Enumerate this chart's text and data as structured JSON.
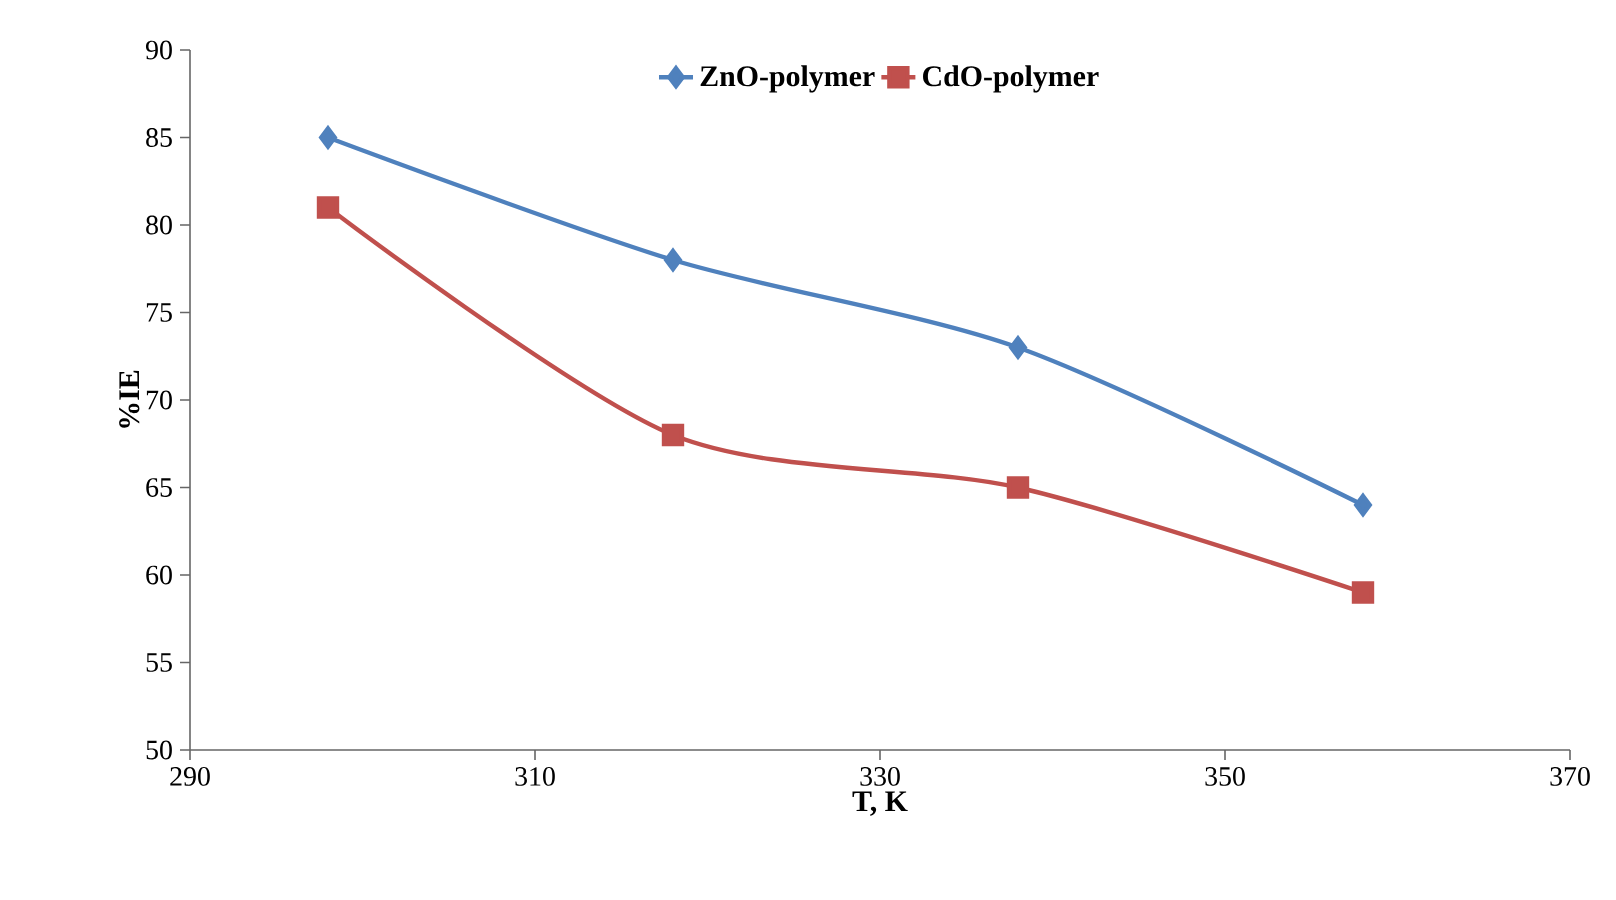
{
  "chart_data": {
    "type": "line",
    "xlabel": "T, K",
    "ylabel": "%IE",
    "x": [
      298,
      318,
      338,
      358
    ],
    "series": [
      {
        "name": "ZnO-polymer",
        "color": "#4f81bd",
        "marker": "diamond",
        "values": [
          85,
          78,
          73,
          64
        ]
      },
      {
        "name": "CdO-polymer",
        "color": "#c0504d",
        "marker": "square",
        "values": [
          81,
          68,
          65,
          59
        ]
      }
    ],
    "xlim": [
      290,
      370
    ],
    "ylim": [
      50,
      90
    ],
    "xticks": [
      290,
      310,
      330,
      350,
      370
    ],
    "yticks": [
      50,
      55,
      60,
      65,
      70,
      75,
      80,
      85,
      90
    ],
    "legend": "top",
    "grid": false
  }
}
